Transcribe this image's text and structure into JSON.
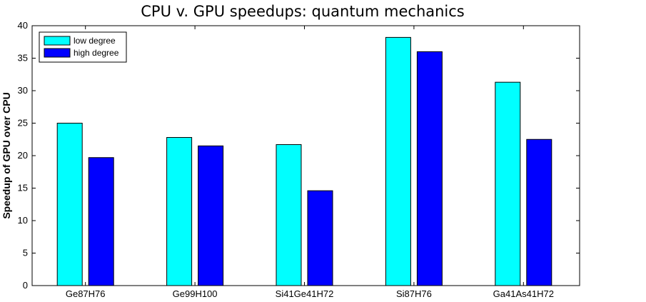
{
  "chart_data": {
    "type": "bar",
    "title": "CPU v. GPU speedups: quantum mechanics",
    "xlabel": "",
    "ylabel": "Speedup of GPU over CPU",
    "categories": [
      "Ge87H76",
      "Ge99H100",
      "Si41Ge41H72",
      "Si87H76",
      "Ga41As41H72"
    ],
    "series": [
      {
        "name": "low degree",
        "color": "#00ffff",
        "values": [
          25.0,
          22.8,
          21.7,
          38.2,
          31.3
        ]
      },
      {
        "name": "high degree",
        "color": "#0000ff",
        "values": [
          19.7,
          21.5,
          14.6,
          36.0,
          22.5
        ]
      }
    ],
    "ylim": [
      0,
      40
    ],
    "yticks": [
      0,
      5,
      10,
      15,
      20,
      25,
      30,
      35,
      40
    ],
    "grid": false,
    "legend_position": "top-left"
  }
}
